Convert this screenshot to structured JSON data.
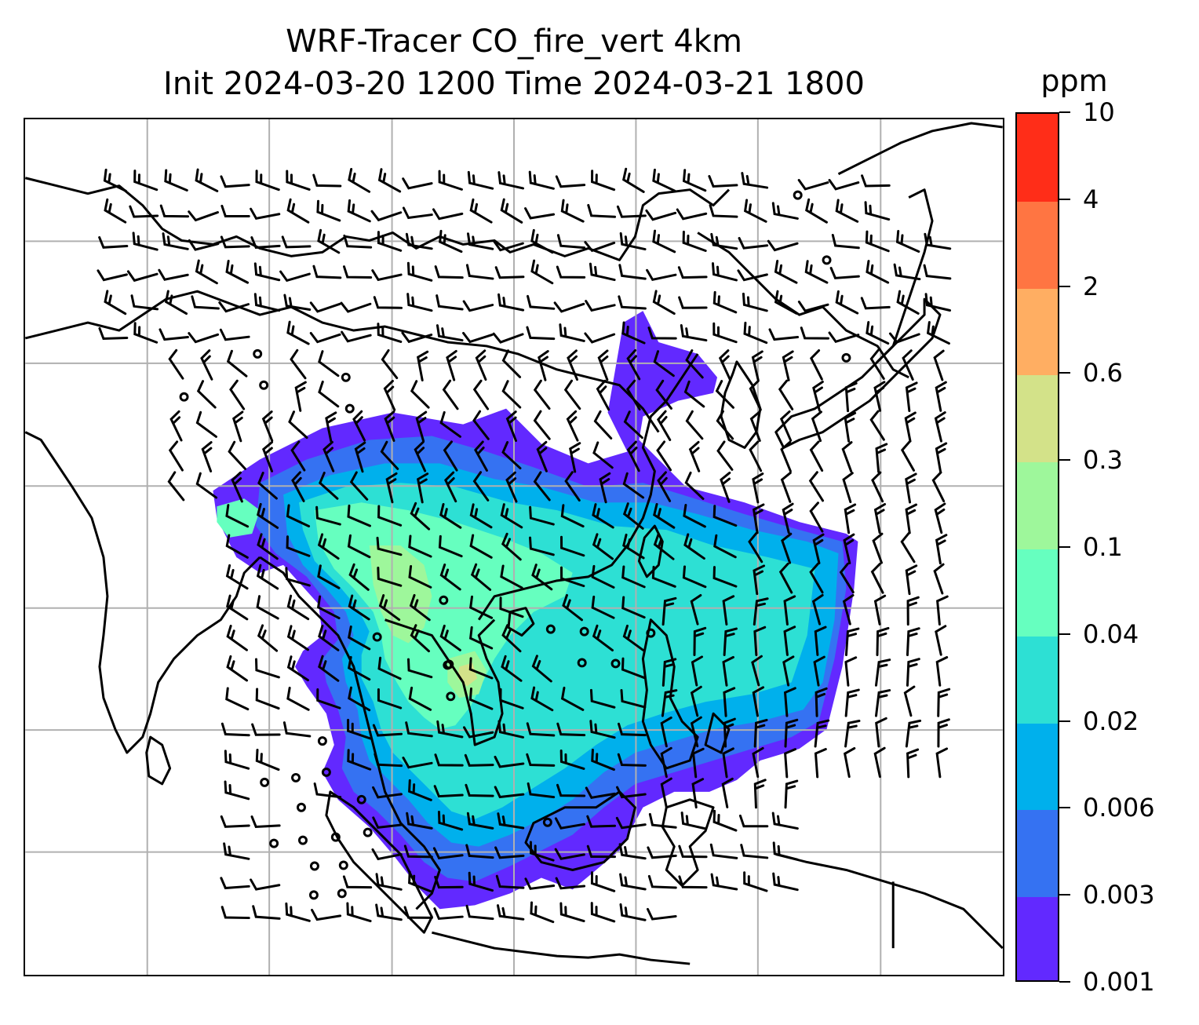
{
  "title": {
    "line1": "WRF-Tracer CO_fire_vert 4km",
    "line2": "Init 2024-03-20 1200 Time 2024-03-21 1800"
  },
  "colorbar": {
    "unit": "ppm",
    "ticks": [
      "0.001",
      "0.003",
      "0.006",
      "0.02",
      "0.04",
      "0.1",
      "0.3",
      "0.6",
      "2",
      "4",
      "10"
    ],
    "band_colors": [
      "#6229ff",
      "#3572f2",
      "#00b0ec",
      "#2de0d4",
      "#66ffbf",
      "#9ef79b",
      "#d3e289",
      "#ffae62",
      "#ff7542",
      "#ff2d18"
    ]
  },
  "map": {
    "gridlines": "on",
    "gridline_color": "#b0b0b0",
    "coastline_color": "#000000",
    "barb_color": "#000000"
  }
}
